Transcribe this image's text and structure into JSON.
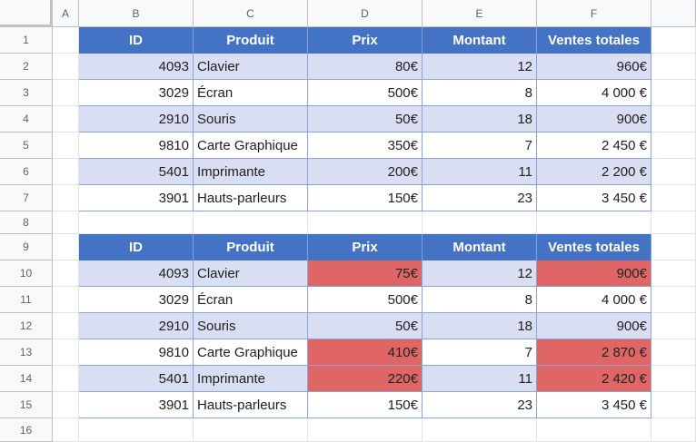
{
  "columns": [
    "A",
    "B",
    "C",
    "D",
    "E",
    "F"
  ],
  "rows": [
    "1",
    "2",
    "3",
    "4",
    "5",
    "6",
    "7",
    "8",
    "9",
    "10",
    "11",
    "12",
    "13",
    "14",
    "15",
    "16"
  ],
  "headers": [
    "ID",
    "Produit",
    "Prix",
    "Montant",
    "Ventes totales"
  ],
  "table1": [
    {
      "id": "4093",
      "produit": "Clavier",
      "prix": "80€",
      "montant": "12",
      "ventes": "960€"
    },
    {
      "id": "3029",
      "produit": "Écran",
      "prix": "500€",
      "montant": "8",
      "ventes": "4 000 €"
    },
    {
      "id": "2910",
      "produit": "Souris",
      "prix": "50€",
      "montant": "18",
      "ventes": "900€"
    },
    {
      "id": "9810",
      "produit": "Carte Graphique",
      "prix": "350€",
      "montant": "7",
      "ventes": "2 450 €"
    },
    {
      "id": "5401",
      "produit": "Imprimante",
      "prix": "200€",
      "montant": "11",
      "ventes": "2 200 €"
    },
    {
      "id": "3901",
      "produit": "Hauts-parleurs",
      "prix": "150€",
      "montant": "23",
      "ventes": "3 450 €"
    }
  ],
  "table2": [
    {
      "id": "4093",
      "produit": "Clavier",
      "prix": "75€",
      "montant": "12",
      "ventes": "900€",
      "highlight": true
    },
    {
      "id": "3029",
      "produit": "Écran",
      "prix": "500€",
      "montant": "8",
      "ventes": "4 000 €",
      "highlight": false
    },
    {
      "id": "2910",
      "produit": "Souris",
      "prix": "50€",
      "montant": "18",
      "ventes": "900€",
      "highlight": false
    },
    {
      "id": "9810",
      "produit": "Carte Graphique",
      "prix": "410€",
      "montant": "7",
      "ventes": "2 870 €",
      "highlight": true
    },
    {
      "id": "5401",
      "produit": "Imprimante",
      "prix": "220€",
      "montant": "11",
      "ventes": "2 420 €",
      "highlight": true
    },
    {
      "id": "3901",
      "produit": "Hauts-parleurs",
      "prix": "150€",
      "montant": "23",
      "ventes": "3 450 €",
      "highlight": false
    }
  ],
  "colors": {
    "header": "#4472c4",
    "band": "#d9def2",
    "highlight": "#e06666"
  }
}
